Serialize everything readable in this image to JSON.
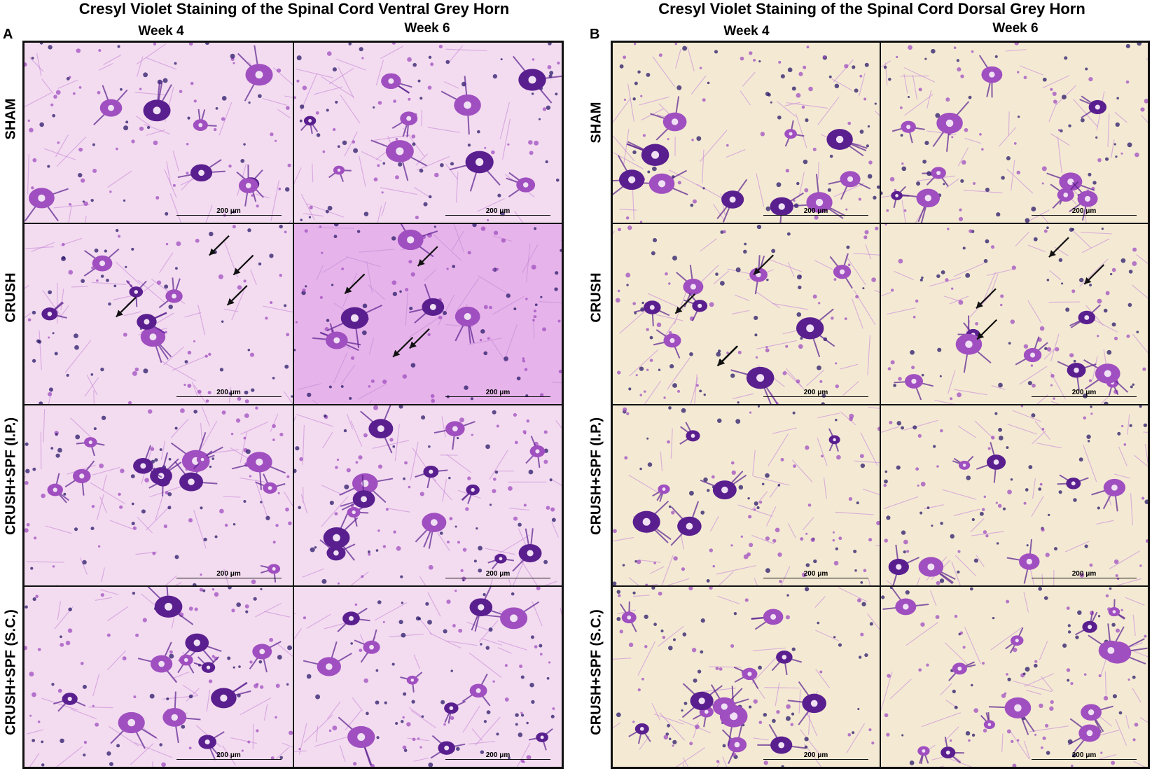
{
  "figure": {
    "panels": [
      {
        "letter": "A",
        "title": "Cresyl Violet Staining  of the Spinal Cord Ventral Grey Horn",
        "columns": [
          "Week 4",
          "Week 6"
        ],
        "rows": [
          "SHAM",
          "CRUSH",
          "CRUSH+SPF (I.P.)",
          "CRUSH+SPF (S.C.)"
        ],
        "scale_label": "200 μm"
      },
      {
        "letter": "B",
        "title": "Cresyl Violet Staining of the Spinal Cord Dorsal Grey Horn",
        "columns": [
          "Week 4",
          "Week 6"
        ],
        "rows": [
          "SHAM",
          "CRUSH",
          "CRUSH+SPF (I.P.)",
          "CRUSH+SPF (S.C.)"
        ],
        "scale_label": "200 μm"
      }
    ],
    "colors": {
      "stain_dark": "#5a1f8f",
      "stain_mid": "#a04fc0",
      "stain_light": "#c98ad8",
      "nucleus": "#2a1a6a",
      "background_pink": "#f3dcf0",
      "background_cream": "#f4ead4",
      "background_blue": "#dfe6ee",
      "arrow": "#111111"
    }
  }
}
